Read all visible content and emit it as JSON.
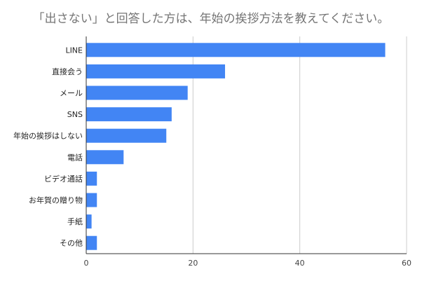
{
  "chart_data": {
    "type": "bar",
    "orientation": "horizontal",
    "title": "「出さない」と回答した方は、年始の挨拶方法を教えてください。",
    "categories": [
      "LINE",
      "直接会う",
      "メール",
      "SNS",
      "年始の挨拶はしない",
      "電話",
      "ビデオ通話",
      "お年賀の贈り物",
      "手紙",
      "その他"
    ],
    "values": [
      56,
      26,
      19,
      16,
      15,
      7,
      2,
      2,
      1,
      2
    ],
    "xlim": [
      0,
      60
    ],
    "xticks": [
      "0",
      "20",
      "40",
      "60"
    ],
    "xtick_values": [
      0,
      20,
      40,
      60
    ],
    "grid": true,
    "xlabel": "",
    "ylabel": "",
    "bar_color": "#4285f4",
    "grid_color": "#cccccc",
    "axis_color": "#333333"
  }
}
